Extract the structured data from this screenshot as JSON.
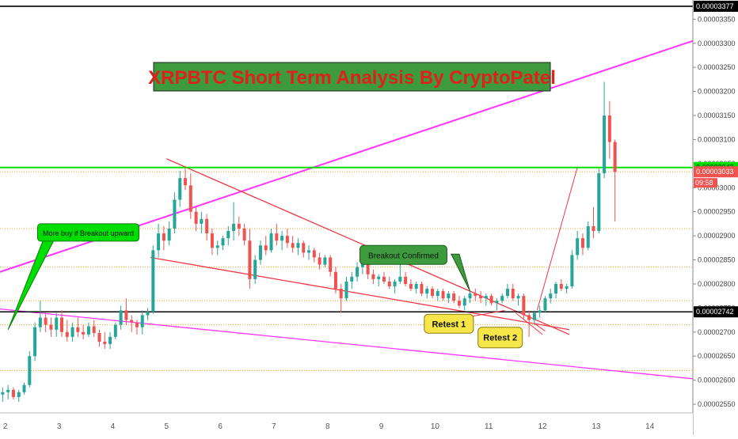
{
  "chart_data": {
    "type": "candlestick",
    "title": "XRPBTC Short Term Analysis By CryptoPatel",
    "x_ticks": [
      "2",
      "3",
      "4",
      "5",
      "6",
      "7",
      "8",
      "9",
      "10",
      "11",
      "12",
      "13",
      "14"
    ],
    "y_ticks": [
      "0.00002550",
      "0.00002600",
      "0.00002650",
      "0.00002700",
      "0.00002750",
      "0.00002800",
      "0.00002850",
      "0.00002900",
      "0.00002950",
      "0.00003000",
      "0.00003050",
      "0.00003100",
      "0.00003150",
      "0.00003200",
      "0.00003250",
      "0.00003300",
      "0.00003350"
    ],
    "ylim": [
      2.532e-05,
      3.39e-05
    ],
    "xlim": [
      1.9,
      14.8
    ],
    "price_labels": {
      "top": "0.00003377",
      "resistance": "0.00003042",
      "current": "0.00003033",
      "countdown": "09:58",
      "support": "0.00002742"
    },
    "colors": {
      "up": "#26a69a",
      "down": "#ef5350",
      "trend": "#ff33ff",
      "wedge": "#f23645",
      "resistance": "#00e000",
      "support": "#000000",
      "dotted": "#f5a623"
    },
    "horizontal_levels": [
      3.377e-05,
      3.042e-05,
      2.742e-05
    ],
    "dotted_levels": [
      3.033e-05,
      2.915e-05,
      2.835e-05,
      2.765e-05,
      2.715e-05,
      2.62e-05
    ],
    "trendlines": [
      {
        "role": "rising-resistance",
        "from": [
          1.9,
          2.825e-05
        ],
        "to": [
          14.8,
          3.305e-05
        ]
      },
      {
        "role": "falling-support",
        "from": [
          1.9,
          2.748e-05
        ],
        "to": [
          14.8,
          2.603e-05
        ]
      },
      {
        "role": "wedge-top",
        "from": [
          5.0,
          3.06e-05
        ],
        "to": [
          12.5,
          2.695e-05
        ]
      },
      {
        "role": "wedge-bottom",
        "from": [
          4.7,
          2.855e-05
        ],
        "to": [
          12.5,
          2.705e-05
        ]
      }
    ],
    "candles": [
      {
        "x": 1.95,
        "o": 2.57e-05,
        "h": 2.585e-05,
        "l": 2.555e-05,
        "c": 2.575e-05
      },
      {
        "x": 2.05,
        "o": 2.575e-05,
        "h": 2.59e-05,
        "l": 2.56e-05,
        "c": 2.58e-05
      },
      {
        "x": 2.15,
        "o": 2.58e-05,
        "h": 2.585e-05,
        "l": 2.56e-05,
        "c": 2.565e-05
      },
      {
        "x": 2.25,
        "o": 2.565e-05,
        "h": 2.58e-05,
        "l": 2.555e-05,
        "c": 2.575e-05
      },
      {
        "x": 2.35,
        "o": 2.575e-05,
        "h": 2.595e-05,
        "l": 2.57e-05,
        "c": 2.59e-05
      },
      {
        "x": 2.45,
        "o": 2.59e-05,
        "h": 2.66e-05,
        "l": 2.585e-05,
        "c": 2.65e-05
      },
      {
        "x": 2.55,
        "o": 2.65e-05,
        "h": 2.72e-05,
        "l": 2.64e-05,
        "c": 2.71e-05
      },
      {
        "x": 2.65,
        "o": 2.71e-05,
        "h": 2.765e-05,
        "l": 2.7e-05,
        "c": 2.73e-05
      },
      {
        "x": 2.75,
        "o": 2.73e-05,
        "h": 2.74e-05,
        "l": 2.7e-05,
        "c": 2.715e-05
      },
      {
        "x": 2.85,
        "o": 2.715e-05,
        "h": 2.73e-05,
        "l": 2.69e-05,
        "c": 2.705e-05
      },
      {
        "x": 2.95,
        "o": 2.705e-05,
        "h": 2.74e-05,
        "l": 2.69e-05,
        "c": 2.73e-05
      },
      {
        "x": 3.05,
        "o": 2.73e-05,
        "h": 2.745e-05,
        "l": 2.69e-05,
        "c": 2.7e-05
      },
      {
        "x": 3.15,
        "o": 2.7e-05,
        "h": 2.725e-05,
        "l": 2.68e-05,
        "c": 2.69e-05
      },
      {
        "x": 3.25,
        "o": 2.69e-05,
        "h": 2.72e-05,
        "l": 2.68e-05,
        "c": 2.71e-05
      },
      {
        "x": 3.35,
        "o": 2.71e-05,
        "h": 2.73e-05,
        "l": 2.69e-05,
        "c": 2.7e-05
      },
      {
        "x": 3.45,
        "o": 2.7e-05,
        "h": 2.715e-05,
        "l": 2.685e-05,
        "c": 2.695e-05
      },
      {
        "x": 3.55,
        "o": 2.695e-05,
        "h": 2.72e-05,
        "l": 2.69e-05,
        "c": 2.712e-05
      },
      {
        "x": 3.65,
        "o": 2.712e-05,
        "h": 2.725e-05,
        "l": 2.69e-05,
        "c": 2.698e-05
      },
      {
        "x": 3.75,
        "o": 2.698e-05,
        "h": 2.705e-05,
        "l": 2.67e-05,
        "c": 2.68e-05
      },
      {
        "x": 3.85,
        "o": 2.68e-05,
        "h": 2.7e-05,
        "l": 2.665e-05,
        "c": 2.675e-05
      },
      {
        "x": 3.95,
        "o": 2.675e-05,
        "h": 2.7e-05,
        "l": 2.665e-05,
        "c": 2.69e-05
      },
      {
        "x": 4.05,
        "o": 2.69e-05,
        "h": 2.72e-05,
        "l": 2.685e-05,
        "c": 2.715e-05
      },
      {
        "x": 4.15,
        "o": 2.715e-05,
        "h": 2.755e-05,
        "l": 2.705e-05,
        "c": 2.745e-05
      },
      {
        "x": 4.25,
        "o": 2.745e-05,
        "h": 2.77e-05,
        "l": 2.715e-05,
        "c": 2.725e-05
      },
      {
        "x": 4.35,
        "o": 2.725e-05,
        "h": 2.735e-05,
        "l": 2.7e-05,
        "c": 2.72e-05
      },
      {
        "x": 4.45,
        "o": 2.72e-05,
        "h": 2.725e-05,
        "l": 2.695e-05,
        "c": 2.71e-05
      },
      {
        "x": 4.55,
        "o": 2.71e-05,
        "h": 2.745e-05,
        "l": 2.695e-05,
        "c": 2.735e-05
      },
      {
        "x": 4.65,
        "o": 2.735e-05,
        "h": 2.75e-05,
        "l": 2.725e-05,
        "c": 2.742e-05
      },
      {
        "x": 4.75,
        "o": 2.742e-05,
        "h": 2.88e-05,
        "l": 2.738e-05,
        "c": 2.87e-05
      },
      {
        "x": 4.85,
        "o": 2.87e-05,
        "h": 2.925e-05,
        "l": 2.855e-05,
        "c": 2.905e-05
      },
      {
        "x": 4.95,
        "o": 2.905e-05,
        "h": 2.92e-05,
        "l": 2.87e-05,
        "c": 2.89e-05
      },
      {
        "x": 5.05,
        "o": 2.89e-05,
        "h": 2.93e-05,
        "l": 2.88e-05,
        "c": 2.915e-05
      },
      {
        "x": 5.15,
        "o": 2.915e-05,
        "h": 2.99e-05,
        "l": 2.905e-05,
        "c": 2.975e-05
      },
      {
        "x": 5.25,
        "o": 2.975e-05,
        "h": 3.035e-05,
        "l": 2.96e-05,
        "c": 3.02e-05
      },
      {
        "x": 5.35,
        "o": 3.02e-05,
        "h": 3.045e-05,
        "l": 2.995e-05,
        "c": 3.005e-05
      },
      {
        "x": 5.45,
        "o": 3.005e-05,
        "h": 3.03e-05,
        "l": 2.935e-05,
        "c": 2.95e-05
      },
      {
        "x": 5.55,
        "o": 2.95e-05,
        "h": 2.96e-05,
        "l": 2.91e-05,
        "c": 2.925e-05
      },
      {
        "x": 5.65,
        "o": 2.925e-05,
        "h": 2.95e-05,
        "l": 2.905e-05,
        "c": 2.935e-05
      },
      {
        "x": 5.75,
        "o": 2.935e-05,
        "h": 2.945e-05,
        "l": 2.89e-05,
        "c": 2.905e-05
      },
      {
        "x": 5.85,
        "o": 2.905e-05,
        "h": 2.915e-05,
        "l": 2.86e-05,
        "c": 2.875e-05
      },
      {
        "x": 5.95,
        "o": 2.875e-05,
        "h": 2.89e-05,
        "l": 2.86e-05,
        "c": 2.88e-05
      },
      {
        "x": 6.05,
        "o": 2.88e-05,
        "h": 2.9e-05,
        "l": 2.87e-05,
        "c": 2.895e-05
      },
      {
        "x": 6.15,
        "o": 2.895e-05,
        "h": 2.92e-05,
        "l": 2.88e-05,
        "c": 2.91e-05
      },
      {
        "x": 6.25,
        "o": 2.91e-05,
        "h": 2.97e-05,
        "l": 2.89e-05,
        "c": 2.925e-05
      },
      {
        "x": 6.35,
        "o": 2.925e-05,
        "h": 2.94e-05,
        "l": 2.9e-05,
        "c": 2.915e-05
      },
      {
        "x": 6.45,
        "o": 2.915e-05,
        "h": 2.925e-05,
        "l": 2.88e-05,
        "c": 2.89e-05
      },
      {
        "x": 6.55,
        "o": 2.89e-05,
        "h": 2.915e-05,
        "l": 2.79e-05,
        "c": 2.81e-05
      },
      {
        "x": 6.65,
        "o": 2.81e-05,
        "h": 2.86e-05,
        "l": 2.8e-05,
        "c": 2.85e-05
      },
      {
        "x": 6.75,
        "o": 2.85e-05,
        "h": 2.89e-05,
        "l": 2.84e-05,
        "c": 2.88e-05
      },
      {
        "x": 6.85,
        "o": 2.88e-05,
        "h": 2.9e-05,
        "l": 2.86e-05,
        "c": 2.87e-05
      },
      {
        "x": 6.95,
        "o": 2.87e-05,
        "h": 2.915e-05,
        "l": 2.865e-05,
        "c": 2.905e-05
      },
      {
        "x": 7.05,
        "o": 2.905e-05,
        "h": 2.925e-05,
        "l": 2.88e-05,
        "c": 2.89e-05
      },
      {
        "x": 7.15,
        "o": 2.89e-05,
        "h": 2.91e-05,
        "l": 2.87e-05,
        "c": 2.9e-05
      },
      {
        "x": 7.25,
        "o": 2.9e-05,
        "h": 2.915e-05,
        "l": 2.875e-05,
        "c": 2.885e-05
      },
      {
        "x": 7.35,
        "o": 2.885e-05,
        "h": 2.9e-05,
        "l": 2.865e-05,
        "c": 2.875e-05
      },
      {
        "x": 7.45,
        "o": 2.875e-05,
        "h": 2.895e-05,
        "l": 2.86e-05,
        "c": 2.885e-05
      },
      {
        "x": 7.55,
        "o": 2.885e-05,
        "h": 2.89e-05,
        "l": 2.855e-05,
        "c": 2.865e-05
      },
      {
        "x": 7.65,
        "o": 2.865e-05,
        "h": 2.88e-05,
        "l": 2.85e-05,
        "c": 2.87e-05
      },
      {
        "x": 7.75,
        "o": 2.87e-05,
        "h": 2.875e-05,
        "l": 2.845e-05,
        "c": 2.855e-05
      },
      {
        "x": 7.85,
        "o": 2.855e-05,
        "h": 2.865e-05,
        "l": 2.83e-05,
        "c": 2.84e-05
      },
      {
        "x": 7.95,
        "o": 2.84e-05,
        "h": 2.86e-05,
        "l": 2.835e-05,
        "c": 2.855e-05
      },
      {
        "x": 8.05,
        "o": 2.855e-05,
        "h": 2.86e-05,
        "l": 2.815e-05,
        "c": 2.825e-05
      },
      {
        "x": 8.15,
        "o": 2.825e-05,
        "h": 2.835e-05,
        "l": 2.78e-05,
        "c": 2.79e-05
      },
      {
        "x": 8.25,
        "o": 2.79e-05,
        "h": 2.8e-05,
        "l": 2.74e-05,
        "c": 2.77e-05
      },
      {
        "x": 8.35,
        "o": 2.77e-05,
        "h": 2.815e-05,
        "l": 2.765e-05,
        "c": 2.805e-05
      },
      {
        "x": 8.45,
        "o": 2.805e-05,
        "h": 2.825e-05,
        "l": 2.79e-05,
        "c": 2.815e-05
      },
      {
        "x": 8.55,
        "o": 2.815e-05,
        "h": 2.845e-05,
        "l": 2.805e-05,
        "c": 2.835e-05
      },
      {
        "x": 8.65,
        "o": 2.835e-05,
        "h": 2.86e-05,
        "l": 2.82e-05,
        "c": 2.845e-05
      },
      {
        "x": 8.75,
        "o": 2.845e-05,
        "h": 2.85e-05,
        "l": 2.81e-05,
        "c": 2.82e-05
      },
      {
        "x": 8.85,
        "o": 2.82e-05,
        "h": 2.83e-05,
        "l": 2.8e-05,
        "c": 2.81e-05
      },
      {
        "x": 8.95,
        "o": 2.81e-05,
        "h": 2.82e-05,
        "l": 2.795e-05,
        "c": 2.815e-05
      },
      {
        "x": 9.05,
        "o": 2.815e-05,
        "h": 2.825e-05,
        "l": 2.8e-05,
        "c": 2.805e-05
      },
      {
        "x": 9.15,
        "o": 2.805e-05,
        "h": 2.815e-05,
        "l": 2.79e-05,
        "c": 2.795e-05
      },
      {
        "x": 9.25,
        "o": 2.795e-05,
        "h": 2.81e-05,
        "l": 2.78e-05,
        "c": 2.805e-05
      },
      {
        "x": 9.35,
        "o": 2.805e-05,
        "h": 2.85e-05,
        "l": 2.8e-05,
        "c": 2.815e-05
      },
      {
        "x": 9.45,
        "o": 2.815e-05,
        "h": 2.825e-05,
        "l": 2.795e-05,
        "c": 2.8e-05
      },
      {
        "x": 9.55,
        "o": 2.8e-05,
        "h": 2.81e-05,
        "l": 2.785e-05,
        "c": 2.79e-05
      },
      {
        "x": 9.65,
        "o": 2.79e-05,
        "h": 2.805e-05,
        "l": 2.78e-05,
        "c": 2.8e-05
      },
      {
        "x": 9.75,
        "o": 2.8e-05,
        "h": 2.805e-05,
        "l": 2.775e-05,
        "c": 2.78e-05
      },
      {
        "x": 9.85,
        "o": 2.78e-05,
        "h": 2.795e-05,
        "l": 2.77e-05,
        "c": 2.79e-05
      },
      {
        "x": 9.95,
        "o": 2.79e-05,
        "h": 2.795e-05,
        "l": 2.77e-05,
        "c": 2.775e-05
      },
      {
        "x": 10.05,
        "o": 2.775e-05,
        "h": 2.79e-05,
        "l": 2.765e-05,
        "c": 2.785e-05
      },
      {
        "x": 10.15,
        "o": 2.785e-05,
        "h": 2.79e-05,
        "l": 2.765e-05,
        "c": 2.77e-05
      },
      {
        "x": 10.25,
        "o": 2.77e-05,
        "h": 2.785e-05,
        "l": 2.76e-05,
        "c": 2.78e-05
      },
      {
        "x": 10.35,
        "o": 2.78e-05,
        "h": 2.785e-05,
        "l": 2.76e-05,
        "c": 2.765e-05
      },
      {
        "x": 10.45,
        "o": 2.765e-05,
        "h": 2.775e-05,
        "l": 2.75e-05,
        "c": 2.755e-05
      },
      {
        "x": 10.55,
        "o": 2.755e-05,
        "h": 2.775e-05,
        "l": 2.745e-05,
        "c": 2.77e-05
      },
      {
        "x": 10.65,
        "o": 2.77e-05,
        "h": 2.785e-05,
        "l": 2.76e-05,
        "c": 2.78e-05
      },
      {
        "x": 10.75,
        "o": 2.78e-05,
        "h": 2.79e-05,
        "l": 2.765e-05,
        "c": 2.775e-05
      },
      {
        "x": 10.85,
        "o": 2.775e-05,
        "h": 2.785e-05,
        "l": 2.76e-05,
        "c": 2.77e-05
      },
      {
        "x": 10.95,
        "o": 2.77e-05,
        "h": 2.78e-05,
        "l": 2.755e-05,
        "c": 2.775e-05
      },
      {
        "x": 11.05,
        "o": 2.775e-05,
        "h": 2.78e-05,
        "l": 2.755e-05,
        "c": 2.76e-05
      },
      {
        "x": 11.15,
        "o": 2.76e-05,
        "h": 2.77e-05,
        "l": 2.745e-05,
        "c": 2.765e-05
      },
      {
        "x": 11.25,
        "o": 2.765e-05,
        "h": 2.78e-05,
        "l": 2.76e-05,
        "c": 2.775e-05
      },
      {
        "x": 11.35,
        "o": 2.775e-05,
        "h": 2.8e-05,
        "l": 2.77e-05,
        "c": 2.79e-05
      },
      {
        "x": 11.45,
        "o": 2.79e-05,
        "h": 2.8e-05,
        "l": 2.765e-05,
        "c": 2.77e-05
      },
      {
        "x": 11.55,
        "o": 2.77e-05,
        "h": 2.78e-05,
        "l": 2.755e-05,
        "c": 2.775e-05
      },
      {
        "x": 11.65,
        "o": 2.775e-05,
        "h": 2.78e-05,
        "l": 2.725e-05,
        "c": 2.735e-05
      },
      {
        "x": 11.75,
        "o": 2.735e-05,
        "h": 2.745e-05,
        "l": 2.69e-05,
        "c": 2.725e-05
      },
      {
        "x": 11.85,
        "o": 2.725e-05,
        "h": 2.745e-05,
        "l": 2.715e-05,
        "c": 2.74e-05
      },
      {
        "x": 11.95,
        "o": 2.74e-05,
        "h": 2.755e-05,
        "l": 2.73e-05,
        "c": 2.745e-05
      },
      {
        "x": 12.05,
        "o": 2.745e-05,
        "h": 2.775e-05,
        "l": 2.74e-05,
        "c": 2.77e-05
      },
      {
        "x": 12.15,
        "o": 2.77e-05,
        "h": 2.79e-05,
        "l": 2.76e-05,
        "c": 2.78e-05
      },
      {
        "x": 12.25,
        "o": 2.78e-05,
        "h": 2.805e-05,
        "l": 2.77e-05,
        "c": 2.8e-05
      },
      {
        "x": 12.35,
        "o": 2.8e-05,
        "h": 2.81e-05,
        "l": 2.785e-05,
        "c": 2.79e-05
      },
      {
        "x": 12.45,
        "o": 2.79e-05,
        "h": 2.8e-05,
        "l": 2.78e-05,
        "c": 2.795e-05
      },
      {
        "x": 12.55,
        "o": 2.795e-05,
        "h": 2.87e-05,
        "l": 2.79e-05,
        "c": 2.86e-05
      },
      {
        "x": 12.65,
        "o": 2.86e-05,
        "h": 2.91e-05,
        "l": 2.85e-05,
        "c": 2.895e-05
      },
      {
        "x": 12.75,
        "o": 2.895e-05,
        "h": 2.905e-05,
        "l": 2.86e-05,
        "c": 2.875e-05
      },
      {
        "x": 12.85,
        "o": 2.875e-05,
        "h": 2.93e-05,
        "l": 2.87e-05,
        "c": 2.92e-05
      },
      {
        "x": 12.95,
        "o": 2.92e-05,
        "h": 2.96e-05,
        "l": 2.895e-05,
        "c": 2.91e-05
      },
      {
        "x": 13.05,
        "o": 2.91e-05,
        "h": 3.04e-05,
        "l": 2.905e-05,
        "c": 3.03e-05
      },
      {
        "x": 13.15,
        "o": 3.03e-05,
        "h": 3.22e-05,
        "l": 3.02e-05,
        "c": 3.15e-05
      },
      {
        "x": 13.25,
        "o": 3.15e-05,
        "h": 3.18e-05,
        "l": 3.06e-05,
        "c": 3.095e-05
      },
      {
        "x": 13.35,
        "o": 3.095e-05,
        "h": 3.1e-05,
        "l": 2.93e-05,
        "c": 3.033e-05
      }
    ],
    "annotations": [
      {
        "text": "More buy if Breakout upward",
        "style": "green-callout"
      },
      {
        "text": "Breakout Confirmed",
        "style": "green-callout"
      },
      {
        "text": "Retest 1",
        "style": "yellow-callout"
      },
      {
        "text": "Retest 2",
        "style": "yellow-callout"
      }
    ]
  }
}
